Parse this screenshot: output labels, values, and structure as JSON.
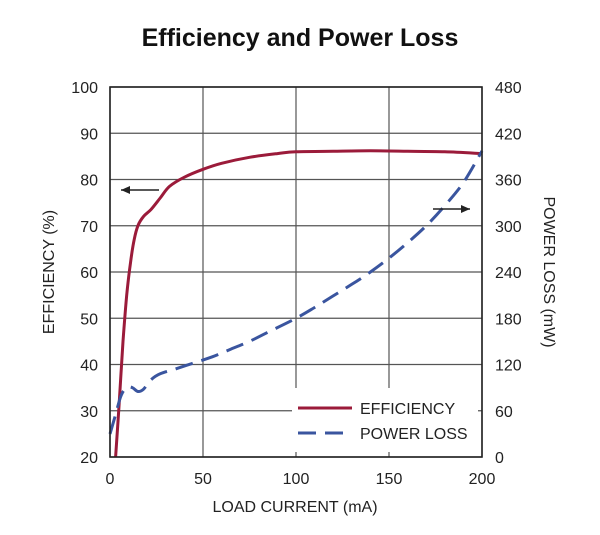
{
  "chart_data": {
    "type": "line",
    "title": "Efficiency and Power Loss",
    "xlabel": "LOAD CURRENT (mA)",
    "ylabel_left": "EFFICIENCY (%)",
    "ylabel_right": "POWER LOSS (mW)",
    "xlim": [
      0,
      200
    ],
    "ylim_left": [
      20,
      100
    ],
    "ylim_right": [
      0,
      480
    ],
    "x_ticks": [
      0,
      50,
      100,
      150,
      200
    ],
    "y_ticks_left": [
      20,
      30,
      40,
      50,
      60,
      70,
      80,
      90,
      100
    ],
    "y_ticks_right": [
      0,
      60,
      120,
      180,
      240,
      300,
      360,
      420,
      480
    ],
    "grid": true,
    "legend_position": "bottom-right",
    "series": [
      {
        "name": "EFFICIENCY",
        "axis": "left",
        "color": "#9b1b3a",
        "style": "solid",
        "points": [
          [
            3,
            20
          ],
          [
            5,
            32
          ],
          [
            7,
            45
          ],
          [
            9,
            55
          ],
          [
            11,
            62
          ],
          [
            13,
            67
          ],
          [
            15,
            70
          ],
          [
            18,
            72
          ],
          [
            22,
            73.5
          ],
          [
            27,
            76
          ],
          [
            32,
            78.5
          ],
          [
            40,
            80.5
          ],
          [
            50,
            82.2
          ],
          [
            60,
            83.5
          ],
          [
            75,
            84.8
          ],
          [
            90,
            85.6
          ],
          [
            100,
            86
          ],
          [
            120,
            86.1
          ],
          [
            140,
            86.2
          ],
          [
            160,
            86.1
          ],
          [
            180,
            86
          ],
          [
            200,
            85.6
          ]
        ]
      },
      {
        "name": "POWER LOSS",
        "axis": "right",
        "color": "#3a559f",
        "style": "dashed",
        "points": [
          [
            0,
            30
          ],
          [
            3,
            55
          ],
          [
            6,
            80
          ],
          [
            9,
            90
          ],
          [
            12,
            90
          ],
          [
            15,
            85
          ],
          [
            18,
            88
          ],
          [
            22,
            100
          ],
          [
            27,
            108
          ],
          [
            35,
            114
          ],
          [
            45,
            122
          ],
          [
            55,
            130
          ],
          [
            65,
            140
          ],
          [
            75,
            150
          ],
          [
            85,
            162
          ],
          [
            100,
            180
          ],
          [
            110,
            194
          ],
          [
            120,
            209
          ],
          [
            130,
            224
          ],
          [
            140,
            240
          ],
          [
            150,
            258
          ],
          [
            160,
            278
          ],
          [
            170,
            300
          ],
          [
            180,
            326
          ],
          [
            190,
            356
          ],
          [
            200,
            397
          ]
        ]
      }
    ],
    "annotations": [
      {
        "type": "arrow",
        "direction": "left",
        "series": "EFFICIENCY"
      },
      {
        "type": "arrow",
        "direction": "right",
        "series": "POWER LOSS"
      }
    ]
  }
}
